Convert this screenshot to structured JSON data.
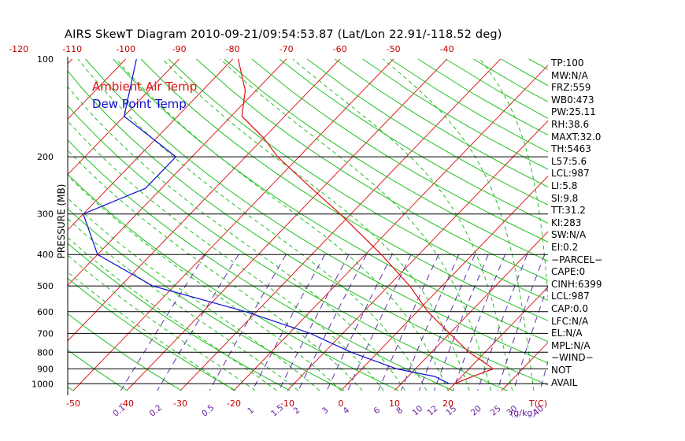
{
  "title": "AIRS SkewT Diagram 2010-09-21/09:54:53.87 (Lat/Lon 22.91/-118.52 deg)",
  "legend": {
    "ambient": "Ambient Air Temp",
    "dewpoint": "Dew Point Temp"
  },
  "colors": {
    "ambient": "#e01010",
    "dewpoint": "#1010d0",
    "isotherm": "#e02020",
    "dry_adiabat": "#20c020",
    "moist_adiabat": "#20c020",
    "mixing_ratio": "#6030b0",
    "axis_labels": "#c00000",
    "mixing_labels": "#6a1fa0"
  },
  "chart_data": {
    "type": "skewt",
    "ylabel": "PRESSURE (MB)",
    "pressure_ticks": [
      100,
      200,
      300,
      400,
      500,
      600,
      700,
      800,
      900,
      1000
    ],
    "pressure_labels": [
      "100",
      "200",
      "300",
      "400",
      "500",
      "600",
      "700",
      "800",
      "900",
      "1000"
    ],
    "pressure_lines": [
      200,
      300,
      400,
      500,
      600,
      700,
      800,
      900,
      1000
    ],
    "top_temp_ticks": [
      "-120",
      "-110",
      "-100",
      "-90",
      "-80",
      "-70",
      "-60",
      "-50",
      "-40"
    ],
    "bottom_temp_ticks": [
      "-50",
      "-40",
      "-30",
      "-20",
      "-10",
      "0",
      "10",
      "20"
    ],
    "bottom_temp_unit": "T(C)",
    "mixing_ratio_labels": [
      "0.1",
      "0.2",
      "0.5",
      "1",
      "1.5",
      "2",
      "3",
      "4",
      "6",
      "8",
      "10",
      "12",
      "15",
      "20",
      "25",
      "30",
      "40"
    ],
    "mixing_ratio_unit": "(g/kg)",
    "temperature": [
      {
        "p": 1000,
        "t": 20.0
      },
      {
        "p": 950,
        "t": 22.0
      },
      {
        "p": 900,
        "t": 24.5
      },
      {
        "p": 850,
        "t": 21.0
      },
      {
        "p": 800,
        "t": 17.0
      },
      {
        "p": 700,
        "t": 10.0
      },
      {
        "p": 600,
        "t": 2.0
      },
      {
        "p": 500,
        "t": -6.0
      },
      {
        "p": 400,
        "t": -17.0
      },
      {
        "p": 300,
        "t": -32.0
      },
      {
        "p": 250,
        "t": -42.0
      },
      {
        "p": 200,
        "t": -54.0
      },
      {
        "p": 175,
        "t": -60.0
      },
      {
        "p": 150,
        "t": -68.0
      },
      {
        "p": 125,
        "t": -72.0
      },
      {
        "p": 100,
        "t": -79.0
      }
    ],
    "dewpoint": [
      {
        "p": 1000,
        "t": 19.0
      },
      {
        "p": 950,
        "t": 15.0
      },
      {
        "p": 900,
        "t": 6.5
      },
      {
        "p": 800,
        "t": -5.0
      },
      {
        "p": 700,
        "t": -16.0
      },
      {
        "p": 600,
        "t": -32.0
      },
      {
        "p": 500,
        "t": -54.0
      },
      {
        "p": 400,
        "t": -70.0
      },
      {
        "p": 300,
        "t": -80.0
      },
      {
        "p": 250,
        "t": -73.0
      },
      {
        "p": 200,
        "t": -73.0
      },
      {
        "p": 150,
        "t": -90.0
      },
      {
        "p": 100,
        "t": -98.0
      }
    ]
  },
  "indices": [
    "TP:100",
    "MW:N/A",
    "FRZ:559",
    "WB0:473",
    "PW:25.11",
    "RH:38.6",
    "MAXT:32.0",
    "TH:5463",
    "L57:5.6",
    "LCL:987",
    "LI:5.8",
    "SI:9.8",
    "TT:31.2",
    "KI:283",
    "SW:N/A",
    "EI:0.2",
    "−PARCEL−",
    "CAPE:0",
    "CINH:6399",
    "LCL:987",
    "CAP:0.0",
    "LFC:N/A",
    "EL:N/A",
    "MPL:N/A",
    "−WIND−",
    "NOT",
    "AVAIL"
  ]
}
